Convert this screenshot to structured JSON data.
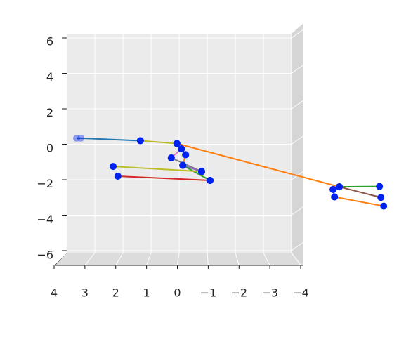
{
  "chart_data": {
    "type": "line3d",
    "xlim": [
      4,
      -4
    ],
    "ylim": [
      -6,
      6
    ],
    "xticks": [
      4,
      3,
      2,
      1,
      0,
      {
        "value": -1,
        "label": "−1"
      },
      {
        "value": -2,
        "label": "−2"
      },
      {
        "value": -3,
        "label": "−3"
      },
      {
        "value": -4,
        "label": "−4"
      }
    ],
    "yticks": [
      {
        "value": -6,
        "label": "−6"
      },
      {
        "value": -4,
        "label": "−4"
      },
      {
        "value": -2,
        "label": "−2"
      },
      0,
      2,
      4,
      6
    ],
    "grid": true,
    "series": [
      {
        "color": "#1f77b4",
        "x": [
          3.65,
          3.5,
          1.38
        ],
        "values": [
          0.34,
          0.34,
          0.2
        ]
      },
      {
        "color": "#bcbd22",
        "x": [
          1.38,
          0.08
        ],
        "values": [
          0.2,
          0.04
        ]
      },
      {
        "color": "#ff7f0e",
        "x": [
          0.08,
          -5.7
        ],
        "values": [
          0.04,
          -2.4
        ]
      },
      {
        "color": "#ff7f0e",
        "x": [
          0.08,
          -0.08
        ],
        "values": [
          0.04,
          -0.26
        ]
      },
      {
        "color": "#d62728",
        "x": [
          -0.08,
          -0.23
        ],
        "values": [
          -0.26,
          -0.59
        ]
      },
      {
        "color": "#e377c2",
        "x": [
          -0.08,
          0.28
        ],
        "values": [
          -0.26,
          -0.77
        ]
      },
      {
        "color": "#ff7f0e",
        "x": [
          -0.23,
          -0.13
        ],
        "values": [
          -0.59,
          -1.19
        ]
      },
      {
        "color": "#7f7f7f",
        "x": [
          0.28,
          -0.8
        ],
        "values": [
          -0.77,
          -1.54
        ]
      },
      {
        "color": "#9467bd",
        "x": [
          -0.13,
          -0.8
        ],
        "values": [
          -1.19,
          -1.54
        ]
      },
      {
        "color": "#2ca02c",
        "x": [
          -0.13,
          -1.1
        ],
        "values": [
          -1.19,
          -2.04
        ]
      },
      {
        "color": "#bcbd22",
        "x": [
          -0.8,
          2.35
        ],
        "values": [
          -1.54,
          -1.25
        ]
      },
      {
        "color": "#d62728",
        "x": [
          -1.1,
          2.18
        ],
        "values": [
          -2.04,
          -1.8
        ]
      },
      {
        "color": "#2ca02c",
        "x": [
          -5.7,
          -7.13
        ],
        "values": [
          -2.4,
          -2.38
        ]
      },
      {
        "color": "#8c564b",
        "x": [
          -5.7,
          -7.18
        ],
        "values": [
          -2.4,
          -3.0
        ]
      },
      {
        "color": "#17becf",
        "x": [
          -5.7,
          -5.48
        ],
        "values": [
          -2.4,
          -2.55
        ]
      },
      {
        "color": "#1f77b4",
        "x": [
          -5.48,
          -5.53
        ],
        "values": [
          -2.55,
          -2.97
        ]
      },
      {
        "color": "#ff7f0e",
        "x": [
          -5.53,
          -7.28
        ],
        "values": [
          -2.97,
          -3.49
        ]
      }
    ]
  }
}
